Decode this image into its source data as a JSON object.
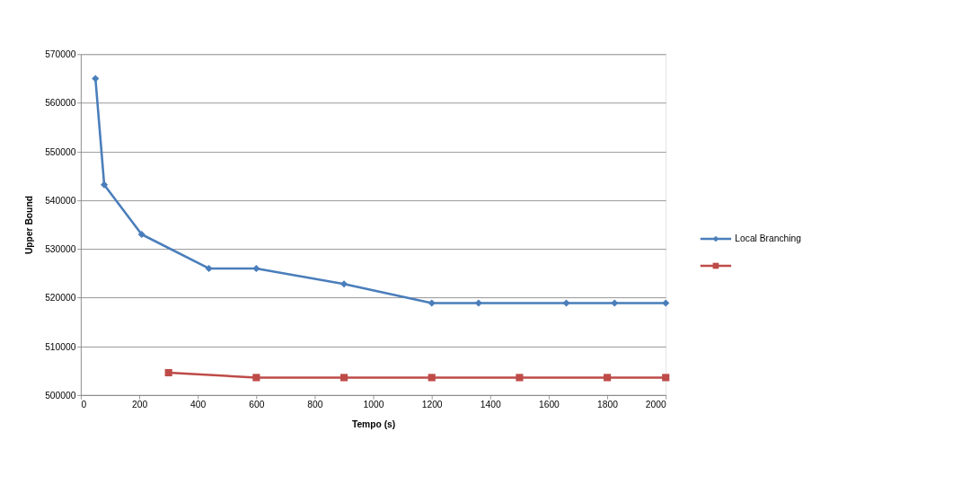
{
  "chart_data": {
    "type": "line",
    "xlabel": "Tempo (s)",
    "ylabel": "Upper Bound",
    "xlim": [
      0,
      2000
    ],
    "xticks": [
      0,
      200,
      400,
      600,
      800,
      1000,
      1200,
      1400,
      1600,
      1800,
      2000
    ],
    "ylim": [
      500000,
      570000
    ],
    "yticks": [
      500000,
      510000,
      520000,
      530000,
      540000,
      550000,
      560000,
      570000
    ],
    "grid": "y",
    "legend": "right",
    "line_style": "solid",
    "series": [
      {
        "name": "Local Branching",
        "color": "#4a7ebb",
        "marker": "diamond",
        "x": [
          50,
          80,
          208,
          438,
          600,
          900,
          1200,
          1360,
          1660,
          1825,
          2000
        ],
        "values": [
          565000,
          543200,
          533000,
          526000,
          526000,
          522800,
          518900,
          518900,
          518900,
          518900,
          518900
        ]
      },
      {
        "color": "#be4b48",
        "marker": "square",
        "x": [
          300,
          600,
          900,
          1200,
          1500,
          1800,
          2000
        ],
        "values": [
          504600,
          503600,
          503600,
          503600,
          503600,
          503600,
          503600
        ]
      }
    ]
  }
}
